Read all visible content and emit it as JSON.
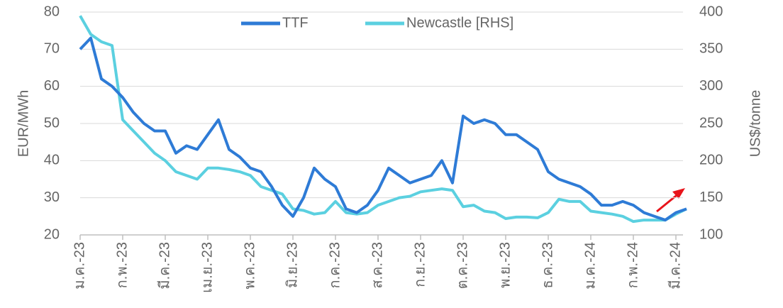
{
  "chart_data": {
    "type": "line",
    "categories": [
      "ม.ค.-23",
      null,
      null,
      null,
      "ก.พ.-23",
      null,
      null,
      null,
      "มี.ค.-23",
      null,
      null,
      null,
      "เม.ย.-23",
      null,
      null,
      null,
      "พ.ค.-23",
      null,
      null,
      null,
      "มิ.ย.-23",
      null,
      null,
      null,
      "ก.ค.-23",
      null,
      null,
      null,
      "ส.ค.-23",
      null,
      null,
      null,
      "ก.ย.-23",
      null,
      null,
      null,
      "ต.ค.-23",
      null,
      null,
      null,
      "พ.ย.-23",
      null,
      null,
      null,
      "ธ.ค.-23",
      null,
      null,
      null,
      "ม.ค.-24",
      null,
      null,
      null,
      "ก.พ.-24",
      null,
      null,
      null,
      "มี.ค.-24",
      null
    ],
    "series": [
      {
        "name": "TTF",
        "color": "#2e7bd6",
        "values": [
          70,
          73,
          62,
          60,
          57,
          53,
          50,
          48,
          48,
          42,
          44,
          43,
          47,
          51,
          43,
          41,
          38,
          37,
          33,
          28,
          25,
          30,
          38,
          35,
          33,
          27,
          26,
          28,
          32,
          38,
          36,
          34,
          35,
          36,
          40,
          34,
          52,
          50,
          51,
          50,
          47,
          47,
          45,
          43,
          37,
          35,
          34,
          33,
          31,
          28,
          28,
          29,
          28,
          26,
          25,
          24,
          26,
          27
        ]
      },
      {
        "name": "Newcastle [RHS]",
        "color": "#5bd0e0",
        "axis": "y2",
        "values": [
          395,
          370,
          360,
          355,
          255,
          240,
          225,
          210,
          200,
          185,
          180,
          175,
          190,
          190,
          188,
          185,
          180,
          165,
          160,
          155,
          135,
          133,
          128,
          130,
          145,
          130,
          128,
          130,
          140,
          145,
          150,
          152,
          158,
          160,
          162,
          160,
          138,
          140,
          132,
          130,
          122,
          124,
          124,
          123,
          130,
          148,
          145,
          145,
          132,
          130,
          128,
          125,
          118,
          120,
          120,
          120,
          128,
          135
        ]
      }
    ],
    "ylabel": "EUR/MWh",
    "y2label": "US$/tonne",
    "ylim": [
      20,
      80
    ],
    "yticks": [
      20,
      30,
      40,
      50,
      60,
      70,
      80
    ],
    "y2lim": [
      100,
      400
    ],
    "y2ticks": [
      100,
      150,
      200,
      250,
      300,
      350,
      400
    ],
    "grid": true,
    "legend": "top"
  }
}
